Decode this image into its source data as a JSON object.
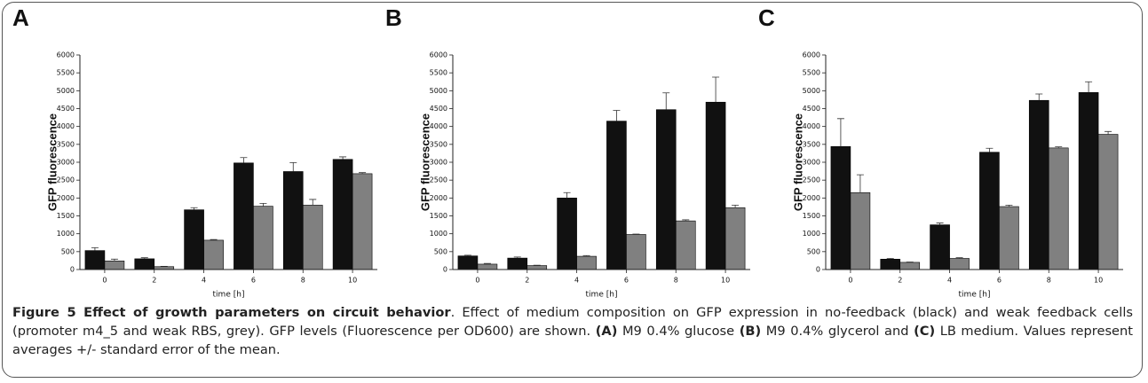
{
  "chart_data": [
    {
      "type": "bar",
      "panel": "A",
      "ylabel": "GFP fluorescence",
      "xlabel": "time [h]",
      "categories": [
        "0",
        "2",
        "4",
        "6",
        "8",
        "10"
      ],
      "series": [
        {
          "color": "#111111",
          "values": [
            530,
            300,
            1670,
            2980,
            2740,
            3080
          ],
          "errors": [
            80,
            30,
            60,
            150,
            250,
            70
          ]
        },
        {
          "color": "#808080",
          "values": [
            240,
            80,
            820,
            1770,
            1800,
            2680
          ],
          "errors": [
            50,
            10,
            20,
            80,
            160,
            30
          ]
        }
      ],
      "ylim": [
        0,
        6000
      ],
      "yticks": [
        0,
        500,
        1000,
        1500,
        2000,
        2500,
        3000,
        3500,
        4000,
        4500,
        5000,
        5500,
        6000
      ]
    },
    {
      "type": "bar",
      "panel": "B",
      "ylabel": "GFP fluorescence",
      "xlabel": "time [h]",
      "categories": [
        "0",
        "2",
        "4",
        "6",
        "8",
        "10"
      ],
      "series": [
        {
          "color": "#111111",
          "values": [
            380,
            320,
            2000,
            4150,
            4470,
            4680
          ],
          "errors": [
            20,
            30,
            150,
            300,
            470,
            700
          ]
        },
        {
          "color": "#808080",
          "values": [
            150,
            110,
            370,
            980,
            1360,
            1730
          ],
          "errors": [
            20,
            10,
            20,
            10,
            30,
            70
          ]
        }
      ],
      "ylim": [
        0,
        6000
      ],
      "yticks": [
        0,
        500,
        1000,
        1500,
        2000,
        2500,
        3000,
        3500,
        4000,
        4500,
        5000,
        5500,
        6000
      ]
    },
    {
      "type": "bar",
      "panel": "C",
      "ylabel": "GFP fluorescence",
      "xlabel": "time [h]",
      "categories": [
        "0",
        "2",
        "4",
        "6",
        "8",
        "10"
      ],
      "series": [
        {
          "color": "#111111",
          "values": [
            3440,
            290,
            1250,
            3280,
            4730,
            4950
          ],
          "errors": [
            780,
            20,
            50,
            110,
            180,
            300
          ]
        },
        {
          "color": "#808080",
          "values": [
            2150,
            200,
            310,
            1760,
            3400,
            3780
          ],
          "errors": [
            500,
            10,
            20,
            40,
            30,
            80
          ]
        }
      ],
      "ylim": [
        0,
        6000
      ],
      "yticks": [
        0,
        500,
        1000,
        1500,
        2000,
        2500,
        3000,
        3500,
        4000,
        4500,
        5000,
        5500,
        6000
      ]
    }
  ],
  "caption": [
    "Figure 5 Effect of growth parameters on circuit behavior",
    ". Effect of medium composition on GFP expression in no-feedback (black) and weak feedback cells (promoter m4_5 and weak RBS, grey). GFP levels (Fluorescence per OD600) are shown. ",
    "(A)",
    " M9 0.4% glucose ",
    "(B)",
    " M9 0.4% glycerol and ",
    "(C)",
    " LB medium. Values represent averages +/- standard error of the mean."
  ]
}
